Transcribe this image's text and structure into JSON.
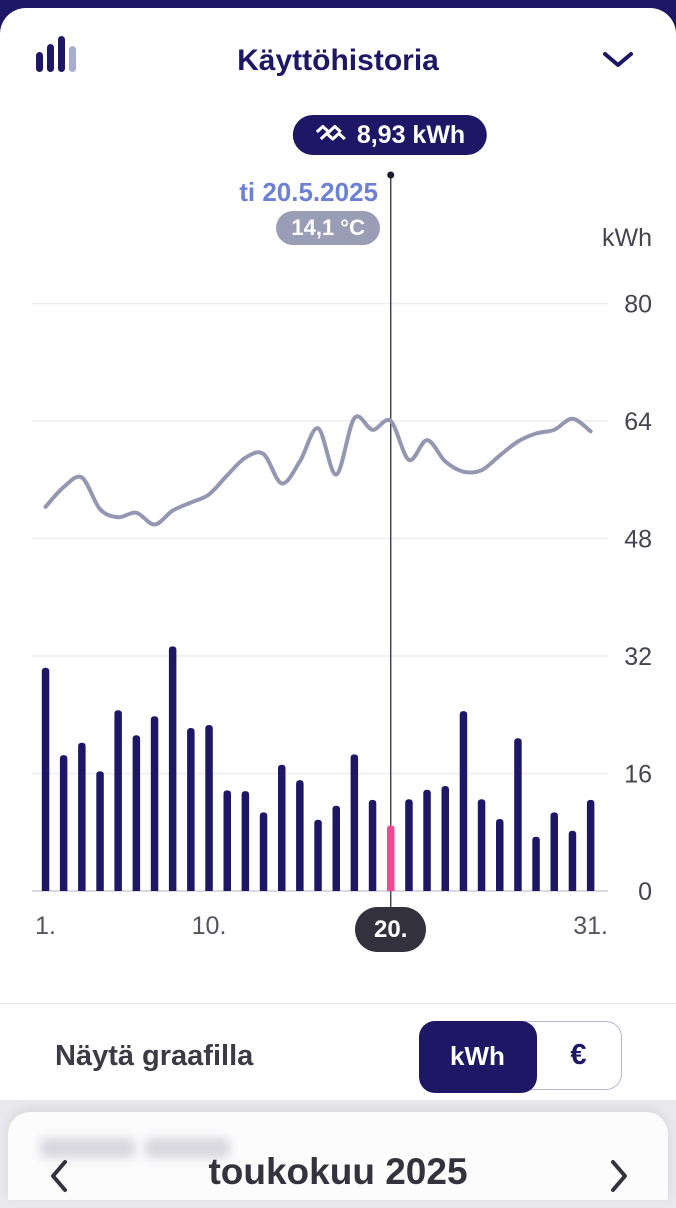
{
  "header": {
    "title": "Käyttöhistoria"
  },
  "tooltip": {
    "value": "8,93 kWh",
    "date": "ti 20.5.2025",
    "temp": "14,1 °C"
  },
  "chart_data": {
    "type": "bar+line",
    "ylabel": "kWh",
    "yticks": [
      0,
      16,
      32,
      48,
      64,
      80
    ],
    "ylim": [
      0,
      88
    ],
    "x_ticks": [
      {
        "day": 1,
        "label": "1."
      },
      {
        "day": 10,
        "label": "10."
      },
      {
        "day": 20,
        "label": "20."
      },
      {
        "day": 31,
        "label": "31."
      }
    ],
    "selected_day": 20,
    "selected_day_label": "20.",
    "selected_index": 19,
    "selected_value_kwh": 8.93,
    "selected_temp_c": 14.1,
    "categories": [
      1,
      2,
      3,
      4,
      5,
      6,
      7,
      8,
      9,
      10,
      11,
      12,
      13,
      14,
      15,
      16,
      17,
      18,
      19,
      20,
      21,
      22,
      23,
      24,
      25,
      26,
      27,
      28,
      29,
      30,
      31
    ],
    "bars": [
      30.4,
      18.5,
      20.2,
      16.3,
      24.6,
      21.2,
      23.8,
      33.3,
      22.2,
      22.6,
      13.7,
      13.6,
      10.7,
      17.2,
      15.1,
      9.7,
      11.6,
      18.6,
      12.4,
      8.93,
      12.5,
      13.8,
      14.3,
      24.5,
      12.5,
      9.8,
      20.8,
      7.4,
      10.7,
      8.2,
      12.4
    ],
    "line_values": [
      52.3,
      55.0,
      56.3,
      52.0,
      50.9,
      51.5,
      49.9,
      51.8,
      52.9,
      54.0,
      56.6,
      59.0,
      59.5,
      55.5,
      58.5,
      63.0,
      56.7,
      64.4,
      62.8,
      64.0,
      58.7,
      61.4,
      58.5,
      57.1,
      57.3,
      59.3,
      61.2,
      62.3,
      62.8,
      64.3,
      62.6
    ],
    "bar_color": "#1e1766",
    "selected_bar_color": "#ef4a94",
    "line_color": "#9597b2",
    "grid_color": "#ededf2",
    "baseline_color": "#cdcdd6"
  },
  "controls": {
    "label": "Näytä graafilla",
    "options": [
      {
        "label": "kWh",
        "selected": true
      },
      {
        "label": "€",
        "selected": false
      }
    ]
  },
  "month_nav": {
    "label": "toukokuu 2025"
  },
  "colors": {
    "navy": "#1e1766",
    "pink": "#ef4a94",
    "periwinkle": "#6d80d4",
    "temp_pill": "#9a9db6",
    "badge": "#32313d"
  }
}
